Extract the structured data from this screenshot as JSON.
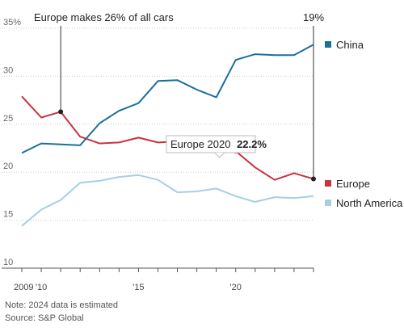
{
  "chart_data": {
    "type": "line",
    "x": [
      2009,
      2010,
      2011,
      2012,
      2013,
      2014,
      2015,
      2016,
      2017,
      2018,
      2019,
      2020,
      2021,
      2022,
      2023,
      2024
    ],
    "x_tick_labels": [
      {
        "value": 2009,
        "label": "2009"
      },
      {
        "value": 2010,
        "label": "'10"
      },
      {
        "value": 2015,
        "label": "'15"
      },
      {
        "value": 2020,
        "label": "'20"
      }
    ],
    "y_ticks": [
      {
        "value": 35,
        "label": "35%"
      },
      {
        "value": 30,
        "label": "30"
      },
      {
        "value": 25,
        "label": "25"
      },
      {
        "value": 20,
        "label": "20"
      },
      {
        "value": 15,
        "label": "15"
      },
      {
        "value": 10,
        "label": "10"
      }
    ],
    "xlim": [
      2009,
      2024
    ],
    "ylim": [
      10,
      35
    ],
    "grid": "horizontal dotted",
    "legend": "right",
    "series": [
      {
        "name": "China",
        "color": "#1a6f9c",
        "values": [
          22.0,
          23.0,
          22.9,
          22.8,
          25.1,
          26.4,
          27.2,
          29.5,
          29.6,
          28.6,
          27.8,
          31.7,
          32.3,
          32.2,
          32.2,
          33.3
        ]
      },
      {
        "name": "Europe",
        "color": "#c8333f",
        "values": [
          27.9,
          25.7,
          26.3,
          23.7,
          23.0,
          23.1,
          23.6,
          23.1,
          23.2,
          23.5,
          23.2,
          22.2,
          20.5,
          19.2,
          19.9,
          19.3
        ]
      },
      {
        "name": "North America",
        "color": "#a6cfe6",
        "values": [
          14.4,
          16.1,
          17.1,
          18.9,
          19.1,
          19.5,
          19.7,
          19.2,
          17.9,
          18.0,
          18.3,
          17.5,
          16.9,
          17.4,
          17.3,
          17.5
        ]
      }
    ],
    "annotations": [
      {
        "text": "Europe makes 26% of all cars",
        "x": 2011,
        "y": 26.3
      },
      {
        "text": "19%",
        "x": 2024,
        "y": 19.3
      }
    ],
    "tooltip": {
      "label": "Europe 2020",
      "value": "22.2%",
      "x": 2020,
      "y": 22.2
    }
  },
  "notes": {
    "note": "Note: 2024 data is estimated",
    "source": "Source: S&P Global"
  }
}
